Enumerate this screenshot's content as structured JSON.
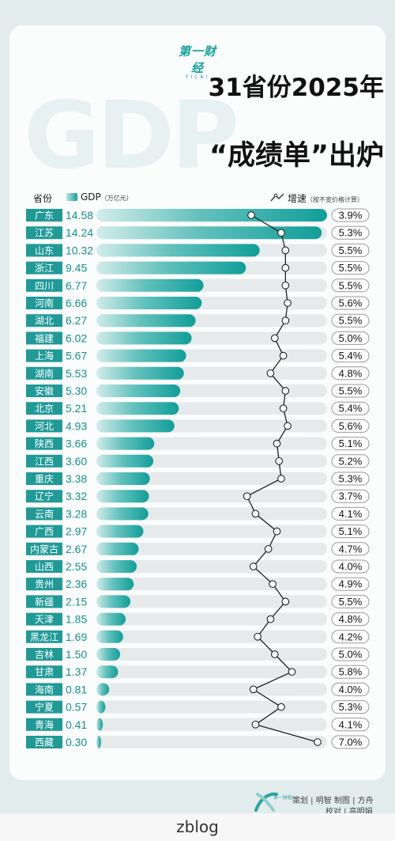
{
  "background_word": "GDP",
  "brand": {
    "name_zh": "第一财经",
    "name_en": "YICAI"
  },
  "title_line1": "31省份2025年",
  "title_line2": "“成绩单”出炉",
  "legend": {
    "province_label": "省份",
    "gdp_label": "GDP",
    "gdp_unit": "（万亿元）",
    "growth_label": "增速",
    "growth_note": "（按不变价格计算）"
  },
  "colors": {
    "accent": "#14a19d",
    "bar_light": "#cfeae8",
    "row_bg": "#e6eaea",
    "province_bg": "#1f9a97"
  },
  "chart_data": {
    "type": "bar",
    "categories": [
      "广东",
      "江苏",
      "山东",
      "浙江",
      "四川",
      "河南",
      "湖北",
      "福建",
      "上海",
      "湖南",
      "安徽",
      "北京",
      "河北",
      "陕西",
      "江西",
      "重庆",
      "辽宁",
      "云南",
      "广西",
      "内蒙古",
      "山西",
      "贵州",
      "新疆",
      "天津",
      "黑龙江",
      "吉林",
      "甘肃",
      "海南",
      "宁夏",
      "青海",
      "西藏"
    ],
    "values": [
      14.58,
      14.24,
      10.32,
      9.45,
      6.77,
      6.66,
      6.27,
      6.02,
      5.67,
      5.53,
      5.3,
      5.21,
      4.93,
      3.66,
      3.6,
      3.38,
      3.32,
      3.28,
      2.97,
      2.67,
      2.55,
      2.36,
      2.15,
      1.85,
      1.69,
      1.5,
      1.37,
      0.81,
      0.57,
      0.41,
      0.3
    ],
    "value_labels": [
      "14.58",
      "14.24",
      "10.32",
      "9.45",
      "6.77",
      "6.66",
      "6.27",
      "6.02",
      "5.67",
      "5.53",
      "5.30",
      "5.21",
      "4.93",
      "3.66",
      "3.60",
      "3.38",
      "3.32",
      "3.28",
      "2.97",
      "2.67",
      "2.55",
      "2.36",
      "2.15",
      "1.85",
      "1.69",
      "1.50",
      "1.37",
      "0.81",
      "0.57",
      "0.41",
      "0.30"
    ],
    "growth": [
      3.9,
      5.3,
      5.5,
      5.5,
      5.5,
      5.6,
      5.5,
      5.0,
      5.4,
      4.8,
      5.5,
      5.4,
      5.6,
      5.1,
      5.2,
      5.3,
      3.7,
      4.1,
      5.1,
      4.7,
      4.0,
      4.9,
      5.5,
      4.8,
      4.2,
      5.0,
      5.8,
      4.0,
      5.3,
      4.1,
      7.0
    ],
    "growth_labels": [
      "3.9%",
      "5.3%",
      "5.5%",
      "5.5%",
      "5.5%",
      "5.6%",
      "5.5%",
      "5.0%",
      "5.4%",
      "4.8%",
      "5.5%",
      "5.4%",
      "5.6%",
      "5.1%",
      "5.2%",
      "5.3%",
      "3.7%",
      "4.1%",
      "5.1%",
      "4.7%",
      "4.0%",
      "4.9%",
      "5.5%",
      "4.8%",
      "4.2%",
      "5.0%",
      "5.8%",
      "4.0%",
      "5.3%",
      "4.1%",
      "7.0%"
    ],
    "series": [
      {
        "name": "GDP",
        "unit": "万亿元"
      },
      {
        "name": "增速",
        "unit": "%"
      }
    ]
  },
  "credits": {
    "line1": "策划 | 明智 制图 | 方舟",
    "line2": "校对 | 高明娟"
  },
  "watermark": "zblog"
}
